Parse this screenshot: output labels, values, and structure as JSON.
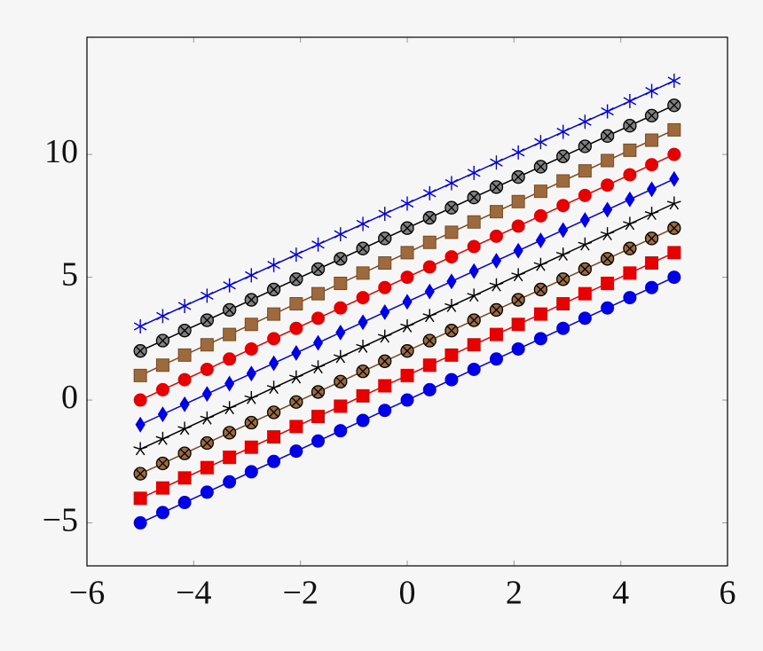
{
  "chart_data": {
    "type": "line",
    "x": [
      -5,
      -4.58,
      -4.17,
      -3.75,
      -3.33,
      -2.92,
      -2.5,
      -2.08,
      -1.67,
      -1.25,
      -0.83,
      -0.42,
      0,
      0.42,
      0.83,
      1.25,
      1.67,
      2.08,
      2.5,
      2.92,
      3.33,
      3.75,
      4.17,
      4.58,
      5
    ],
    "series": [
      {
        "color": "#0000e6",
        "fill": "#0000e6",
        "marker": "circle",
        "values": [
          -5,
          -4.58,
          -4.17,
          -3.75,
          -3.33,
          -2.92,
          -2.5,
          -2.08,
          -1.67,
          -1.25,
          -0.83,
          -0.42,
          0,
          0.42,
          0.83,
          1.25,
          1.67,
          2.08,
          2.5,
          2.92,
          3.33,
          3.75,
          4.17,
          4.58,
          5
        ]
      },
      {
        "color": "#e60000",
        "fill": "#e60000",
        "marker": "square",
        "values": [
          -4,
          -3.58,
          -3.17,
          -2.75,
          -2.33,
          -1.92,
          -1.5,
          -1.08,
          -0.67,
          -0.25,
          0.17,
          0.58,
          1,
          1.42,
          1.83,
          2.25,
          2.67,
          3.08,
          3.5,
          3.92,
          4.33,
          4.75,
          5.17,
          5.58,
          6
        ]
      },
      {
        "color": "#7a4a22",
        "fill": "#9c6a3c",
        "marker": "circle-x",
        "values": [
          -3,
          -2.58,
          -2.17,
          -1.75,
          -1.33,
          -0.92,
          -0.5,
          -0.08,
          0.33,
          0.75,
          1.17,
          1.58,
          2,
          2.42,
          2.83,
          3.25,
          3.67,
          4.08,
          4.5,
          4.92,
          5.33,
          5.75,
          6.17,
          6.58,
          7
        ]
      },
      {
        "color": "#000000",
        "fill": "#000000",
        "marker": "star",
        "values": [
          -2,
          -1.58,
          -1.17,
          -0.75,
          -0.33,
          0.08,
          0.5,
          0.92,
          1.33,
          1.75,
          2.17,
          2.58,
          3,
          3.42,
          3.83,
          4.25,
          4.67,
          5.08,
          5.5,
          5.92,
          6.33,
          6.75,
          7.17,
          7.58,
          8
        ]
      },
      {
        "color": "#0000e6",
        "fill": "#0000e6",
        "marker": "diamond",
        "values": [
          -1,
          -0.58,
          -0.17,
          0.25,
          0.67,
          1.08,
          1.5,
          1.92,
          2.33,
          2.75,
          3.17,
          3.58,
          4,
          4.42,
          4.83,
          5.25,
          5.67,
          6.08,
          6.5,
          6.92,
          7.33,
          7.75,
          8.17,
          8.58,
          9
        ]
      },
      {
        "color": "#e60000",
        "fill": "#e60000",
        "marker": "circle",
        "values": [
          0,
          0.42,
          0.83,
          1.25,
          1.67,
          2.08,
          2.5,
          2.92,
          3.33,
          3.75,
          4.17,
          4.58,
          5,
          5.42,
          5.83,
          6.25,
          6.67,
          7.08,
          7.5,
          7.92,
          8.33,
          8.75,
          9.17,
          9.58,
          10
        ]
      },
      {
        "color": "#7a4a22",
        "fill": "#9c6a3c",
        "marker": "square",
        "values": [
          1,
          1.42,
          1.83,
          2.25,
          2.67,
          3.08,
          3.5,
          3.92,
          4.33,
          4.75,
          5.17,
          5.58,
          6,
          6.42,
          6.83,
          7.25,
          7.67,
          8.08,
          8.5,
          8.92,
          9.33,
          9.75,
          10.17,
          10.58,
          11
        ]
      },
      {
        "color": "#000000",
        "fill": "#808080",
        "marker": "circle-x",
        "values": [
          2,
          2.42,
          2.83,
          3.25,
          3.67,
          4.08,
          4.5,
          4.92,
          5.33,
          5.75,
          6.17,
          6.58,
          7,
          7.42,
          7.83,
          8.25,
          8.67,
          9.08,
          9.5,
          9.92,
          10.33,
          10.75,
          11.17,
          11.58,
          12
        ]
      },
      {
        "color": "#0000e6",
        "fill": "#0000e6",
        "marker": "asterisk",
        "values": [
          3,
          3.42,
          3.83,
          4.25,
          4.67,
          5.08,
          5.5,
          5.92,
          6.33,
          6.75,
          7.17,
          7.58,
          8,
          8.42,
          8.83,
          9.25,
          9.67,
          10.08,
          10.5,
          10.92,
          11.33,
          11.75,
          12.17,
          12.58,
          13
        ]
      }
    ],
    "xlim": [
      -6,
      6
    ],
    "ylim": [
      -6.75,
      14.77
    ],
    "xticks": [
      {
        "value": -6,
        "label": "−6"
      },
      {
        "value": -4,
        "label": "−4"
      },
      {
        "value": -2,
        "label": "−2"
      },
      0,
      2,
      4,
      6
    ],
    "yticks": [
      {
        "value": -5,
        "label": "−5"
      },
      0,
      5,
      10
    ]
  }
}
